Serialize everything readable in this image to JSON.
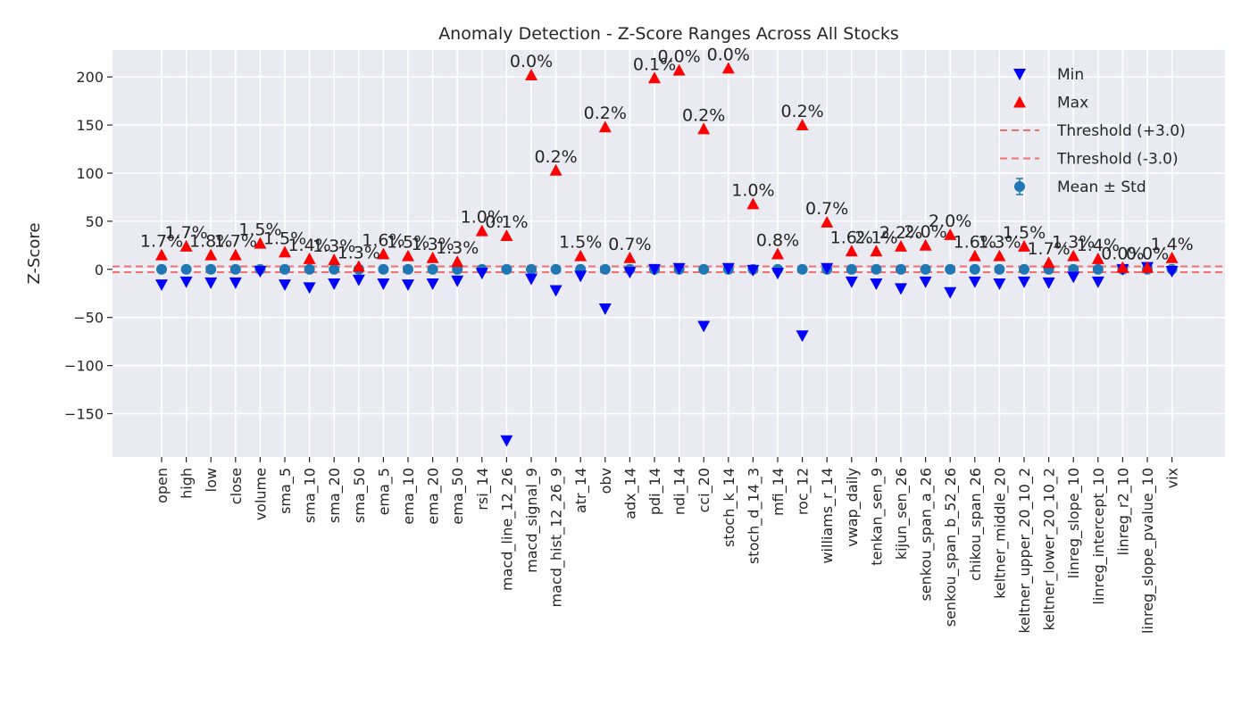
{
  "chart_data": {
    "type": "scatter",
    "title": "Anomaly Detection - Z-Score Ranges Across All Stocks",
    "xlabel": "",
    "ylabel": "Z-Score",
    "ylim": [
      -195,
      228
    ],
    "yticks": [
      -150,
      -100,
      -50,
      0,
      50,
      100,
      150,
      200
    ],
    "ytick_labels": [
      "−150",
      "−100",
      "−50",
      "0",
      "50",
      "100",
      "150",
      "200"
    ],
    "grid": true,
    "legend_position": "top-right",
    "thresholds": [
      3.0,
      -3.0
    ],
    "categories": [
      "open",
      "high",
      "low",
      "close",
      "volume",
      "sma_5",
      "sma_10",
      "sma_20",
      "sma_50",
      "ema_5",
      "ema_10",
      "ema_20",
      "ema_50",
      "rsi_14",
      "macd_line_12_26",
      "macd_signal_9",
      "macd_hist_12_26_9",
      "atr_14",
      "obv",
      "adx_14",
      "pdi_14",
      "ndi_14",
      "cci_20",
      "stoch_k_14",
      "stoch_d_14_3",
      "mfi_14",
      "roc_12",
      "williams_r_14",
      "vwap_daily",
      "tenkan_sen_9",
      "kijun_sen_26",
      "senkou_span_a_26",
      "senkou_span_b_52_26",
      "chikou_span_26",
      "keltner_middle_20",
      "keltner_upper_20_10_2",
      "keltner_lower_20_10_2",
      "linreg_slope_10",
      "linreg_intercept_10",
      "linreg_r2_10",
      "linreg_slope_pvalue_10",
      "vix"
    ],
    "series": [
      {
        "name": "Min",
        "color": "#0000ff",
        "marker": "triangle-down",
        "values": [
          -16,
          -13,
          -14,
          -14,
          -2,
          -16,
          -19,
          -15,
          -11,
          -15,
          -16,
          -15,
          -12,
          -4,
          -178,
          -10,
          -22,
          -7,
          -41,
          -3,
          0,
          1,
          -59,
          1,
          -1,
          -4,
          -69,
          1,
          -13,
          -15,
          -20,
          -13,
          -24,
          -13,
          -15,
          -13,
          -14,
          -8,
          -13,
          0,
          2,
          -2
        ]
      },
      {
        "name": "Max",
        "color": "#ff0000",
        "marker": "triangle-up",
        "values": [
          15,
          24,
          15,
          15,
          27,
          18,
          11,
          10,
          3,
          16,
          14,
          12,
          8,
          40,
          35,
          202,
          103,
          14,
          148,
          12,
          199,
          207,
          146,
          209,
          68,
          16,
          150,
          49,
          19,
          19,
          24,
          25,
          36,
          14,
          14,
          24,
          7,
          14,
          11,
          2,
          2,
          12
        ]
      },
      {
        "name": "Mean ± Std",
        "color": "#1f77b4",
        "marker": "circle",
        "values": [
          0,
          0,
          0,
          0,
          0,
          0,
          0,
          0,
          0,
          0,
          0,
          0,
          0,
          0,
          0,
          0,
          0,
          0,
          0,
          0,
          0,
          0,
          0,
          0,
          0,
          0,
          0,
          0,
          0,
          0,
          0,
          0,
          0,
          0,
          0,
          0,
          0,
          0,
          0,
          0,
          0,
          0
        ],
        "std": [
          1,
          1,
          1,
          1,
          1,
          1,
          1,
          1,
          1,
          1,
          1,
          1,
          1,
          1,
          1,
          1,
          1,
          1,
          1,
          1,
          1,
          1,
          1,
          1,
          1,
          1,
          1,
          1,
          1,
          1,
          1,
          1,
          1,
          1,
          1,
          1,
          1,
          1,
          1,
          1,
          1,
          1
        ]
      }
    ],
    "annotations": [
      "1.7%",
      "1.7%",
      "1.8%",
      "1.7%",
      "1.5%",
      "1.5%",
      "1.4%",
      "1.3%",
      "1.3%",
      "1.6%",
      "1.5%",
      "1.3%",
      "1.3%",
      "1.0%",
      "0.1%",
      "0.0%",
      "0.2%",
      "1.5%",
      "0.2%",
      "0.7%",
      "0.1%",
      "0.0%",
      "0.2%",
      "0.0%",
      "1.0%",
      "0.8%",
      "0.2%",
      "0.7%",
      "1.6%",
      "2.1%",
      "2.2%",
      "2.0%",
      "2.0%",
      "1.6%",
      "1.3%",
      "1.5%",
      "1.7%",
      "1.3%",
      "1.4%",
      "0.0%",
      "0.0%",
      "1.4%"
    ],
    "legend": [
      {
        "label": "Min",
        "marker": "triangle-down",
        "color": "#0000ff"
      },
      {
        "label": "Max",
        "marker": "triangle-up",
        "color": "#ff0000"
      },
      {
        "label": "Threshold (+3.0)",
        "marker": "dashed-line",
        "color": "#f07070"
      },
      {
        "label": "Threshold (-3.0)",
        "marker": "dashed-line",
        "color": "#f07070"
      },
      {
        "label": "Mean ± Std",
        "marker": "circle-errorbar",
        "color": "#1f77b4"
      }
    ]
  }
}
